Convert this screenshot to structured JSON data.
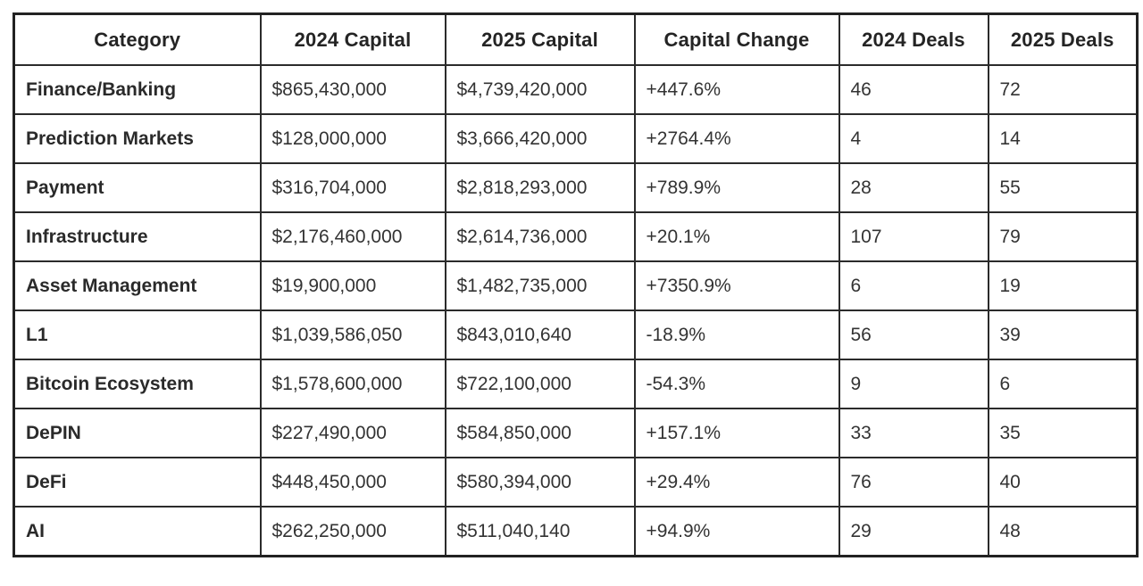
{
  "colors": {
    "background": "#ffffff",
    "border": "#2b2b2b",
    "outer_border": "#222222",
    "header_text": "#242424",
    "body_text": "#333333"
  },
  "chart_data": {
    "type": "table",
    "columns": [
      "Category",
      "2024 Capital",
      "2025 Capital",
      "Capital Change",
      "2024 Deals",
      "2025 Deals"
    ],
    "rows": [
      [
        "Finance/Banking",
        "$865,430,000",
        "$4,739,420,000",
        "+447.6%",
        "46",
        "72"
      ],
      [
        "Prediction Markets",
        "$128,000,000",
        "$3,666,420,000",
        "+2764.4%",
        "4",
        "14"
      ],
      [
        "Payment",
        "$316,704,000",
        "$2,818,293,000",
        "+789.9%",
        "28",
        "55"
      ],
      [
        "Infrastructure",
        "$2,176,460,000",
        "$2,614,736,000",
        "+20.1%",
        "107",
        "79"
      ],
      [
        "Asset Management",
        "$19,900,000",
        "$1,482,735,000",
        "+7350.9%",
        "6",
        "19"
      ],
      [
        "L1",
        "$1,039,586,050",
        "$843,010,640",
        "-18.9%",
        "56",
        "39"
      ],
      [
        "Bitcoin Ecosystem",
        "$1,578,600,000",
        "$722,100,000",
        "-54.3%",
        "9",
        "6"
      ],
      [
        "DePIN",
        "$227,490,000",
        "$584,850,000",
        "+157.1%",
        "33",
        "35"
      ],
      [
        "DeFi",
        "$448,450,000",
        "$580,394,000",
        "+29.4%",
        "76",
        "40"
      ],
      [
        "AI",
        "$262,250,000",
        "$511,040,140",
        "+94.9%",
        "29",
        "48"
      ]
    ]
  }
}
